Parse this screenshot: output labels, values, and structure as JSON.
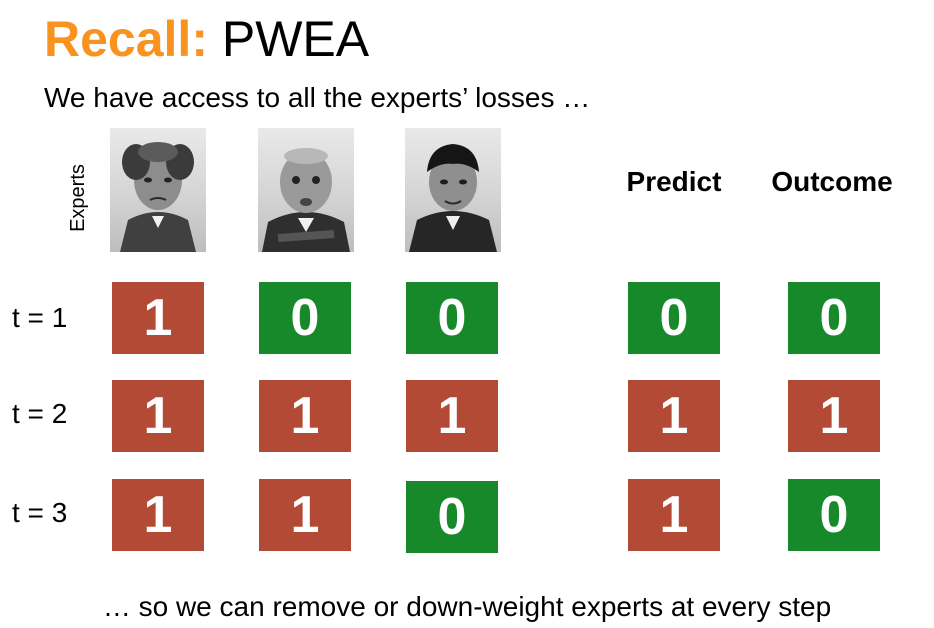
{
  "title": {
    "recall": "Recall:",
    "name": "PWEA"
  },
  "subtitle": "We have access to all the experts’ losses …",
  "experts_label": "Experts",
  "headers": {
    "predict": "Predict",
    "outcome": "Outcome"
  },
  "rows": [
    {
      "label": "t = 1",
      "experts": [
        "1",
        "0",
        "0"
      ],
      "predict": "0",
      "outcome": "0"
    },
    {
      "label": "t = 2",
      "experts": [
        "1",
        "1",
        "1"
      ],
      "predict": "1",
      "outcome": "1"
    },
    {
      "label": "t = 3",
      "experts": [
        "1",
        "1",
        "0"
      ],
      "predict": "1",
      "outcome": "0"
    }
  ],
  "colors": {
    "title_accent": "#f7931e",
    "one": "#b24a36",
    "zero": "#17892a"
  },
  "footer": "… so we can remove or down-weight experts at every step"
}
